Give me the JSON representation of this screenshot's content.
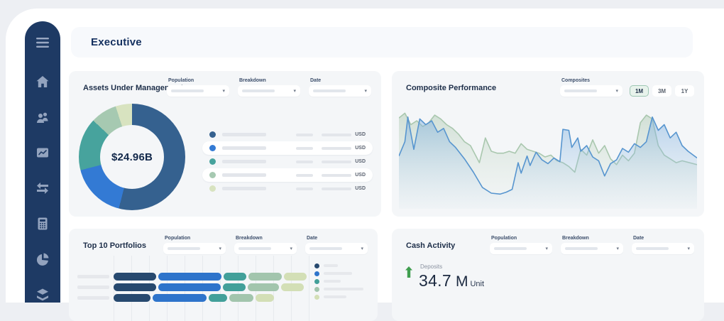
{
  "header": {
    "title": "Executive"
  },
  "sidebar": {
    "items": [
      "menu",
      "home",
      "users",
      "performance",
      "transfers",
      "calculator",
      "allocation",
      "layers"
    ]
  },
  "filters": {
    "population": "Population",
    "breakdown": "Breakdown",
    "date": "Date",
    "composites": "Composites"
  },
  "panels": {
    "aum": {
      "title": "Assets Under Management",
      "center_value": "$24.96B",
      "currency": "USD"
    },
    "composite": {
      "title": "Composite Performance",
      "range_buttons": [
        "1M",
        "3M",
        "1Y"
      ],
      "active_range": "1M"
    },
    "top10": {
      "title": "Top 10 Portfolios"
    },
    "cash": {
      "title": "Cash Activity",
      "metric_label": "Deposits",
      "metric_value": "34.7",
      "metric_magnitude": "M",
      "metric_unit": "Unit",
      "trend": "up"
    }
  },
  "chart_data": [
    {
      "id": "aum_donut",
      "type": "pie",
      "title": "Assets Under Management",
      "center_label": "$24.96B",
      "slices": [
        {
          "share": 54,
          "color": "#35618f"
        },
        {
          "share": 17,
          "color": "#337ad4"
        },
        {
          "share": 16,
          "color": "#47a39d"
        },
        {
          "share": 8,
          "color": "#a6c9b1"
        },
        {
          "share": 5,
          "color": "#d8e3c0"
        }
      ],
      "legend": {
        "rows": 5,
        "value_suffix": "USD"
      }
    },
    {
      "id": "composite_performance",
      "type": "line",
      "title": "Composite Performance",
      "range_selected": "1M",
      "grid": false,
      "series": [
        {
          "name": "series-green",
          "color": "#a9c7ae",
          "fill_top": "rgba(173,201,178,0.50)",
          "fill_bottom": "rgba(210,225,210,0.04)",
          "points": [
            [
              0,
              85
            ],
            [
              2,
              90
            ],
            [
              4,
              78
            ],
            [
              6,
              82
            ],
            [
              8,
              76
            ],
            [
              10,
              80
            ],
            [
              12,
              88
            ],
            [
              14,
              84
            ],
            [
              16,
              78
            ],
            [
              18,
              74
            ],
            [
              20,
              68
            ],
            [
              22,
              60
            ],
            [
              24,
              56
            ],
            [
              25,
              50
            ],
            [
              27,
              38
            ],
            [
              29,
              64
            ],
            [
              31,
              50
            ],
            [
              33,
              48
            ],
            [
              35,
              48
            ],
            [
              37,
              50
            ],
            [
              39,
              48
            ],
            [
              41,
              58
            ],
            [
              43,
              52
            ],
            [
              45,
              50
            ],
            [
              47,
              48
            ],
            [
              49,
              44
            ],
            [
              51,
              46
            ],
            [
              53,
              40
            ],
            [
              55,
              38
            ],
            [
              57,
              34
            ],
            [
              59,
              28
            ],
            [
              61,
              52
            ],
            [
              63,
              46
            ],
            [
              65,
              62
            ],
            [
              67,
              48
            ],
            [
              69,
              56
            ],
            [
              71,
              42
            ],
            [
              73,
              36
            ],
            [
              75,
              46
            ],
            [
              77,
              40
            ],
            [
              79,
              48
            ],
            [
              81,
              80
            ],
            [
              83,
              88
            ],
            [
              85,
              84
            ],
            [
              87,
              56
            ],
            [
              89,
              46
            ],
            [
              91,
              42
            ],
            [
              93,
              38
            ],
            [
              95,
              40
            ],
            [
              100,
              36
            ]
          ]
        },
        {
          "name": "series-blue",
          "color": "#5795cf",
          "fill_top": "rgba(124,174,222,0.50)",
          "fill_bottom": "rgba(180,210,235,0.05)",
          "points": [
            [
              0,
              45
            ],
            [
              2,
              60
            ],
            [
              3,
              86
            ],
            [
              5,
              52
            ],
            [
              7,
              84
            ],
            [
              9,
              78
            ],
            [
              11,
              82
            ],
            [
              13,
              70
            ],
            [
              15,
              74
            ],
            [
              17,
              60
            ],
            [
              19,
              54
            ],
            [
              22,
              42
            ],
            [
              25,
              28
            ],
            [
              28,
              12
            ],
            [
              31,
              6
            ],
            [
              34,
              5
            ],
            [
              36,
              7
            ],
            [
              38,
              10
            ],
            [
              40,
              38
            ],
            [
              41,
              27
            ],
            [
              43,
              45
            ],
            [
              44,
              35
            ],
            [
              46,
              49
            ],
            [
              48,
              41
            ],
            [
              50,
              37
            ],
            [
              52,
              43
            ],
            [
              54,
              39
            ],
            [
              55,
              73
            ],
            [
              57,
              72
            ],
            [
              58,
              54
            ],
            [
              60,
              64
            ],
            [
              61,
              50
            ],
            [
              63,
              56
            ],
            [
              65,
              44
            ],
            [
              67,
              40
            ],
            [
              69,
              24
            ],
            [
              71,
              37
            ],
            [
              73,
              41
            ],
            [
              75,
              53
            ],
            [
              77,
              49
            ],
            [
              79,
              58
            ],
            [
              81,
              54
            ],
            [
              83,
              60
            ],
            [
              85,
              86
            ],
            [
              87,
              72
            ],
            [
              89,
              78
            ],
            [
              91,
              64
            ],
            [
              93,
              70
            ],
            [
              95,
              56
            ],
            [
              97,
              50
            ],
            [
              100,
              43
            ]
          ]
        }
      ]
    },
    {
      "id": "top10_portfolios",
      "type": "bar",
      "title": "Top 10 Portfolios",
      "orientation": "horizontal",
      "stacked": true,
      "colors": [
        "#27496f",
        "#2e74cb",
        "#42a09a",
        "#a2c5ad",
        "#d3dfb6"
      ],
      "rows": [
        {
          "segments": [
            60,
            89,
            32,
            47,
            32
          ]
        },
        {
          "segments": [
            60,
            88,
            32,
            44,
            32
          ]
        },
        {
          "segments": [
            52,
            76,
            26,
            34,
            26
          ]
        }
      ],
      "legend_swatch_widths": [
        20,
        40,
        24,
        56,
        32
      ]
    },
    {
      "id": "cash_activity",
      "type": "table",
      "title": "Cash Activity",
      "metrics": [
        {
          "label": "Deposits",
          "value": 34.7,
          "unit": "M Unit",
          "direction": "up"
        }
      ]
    }
  ]
}
